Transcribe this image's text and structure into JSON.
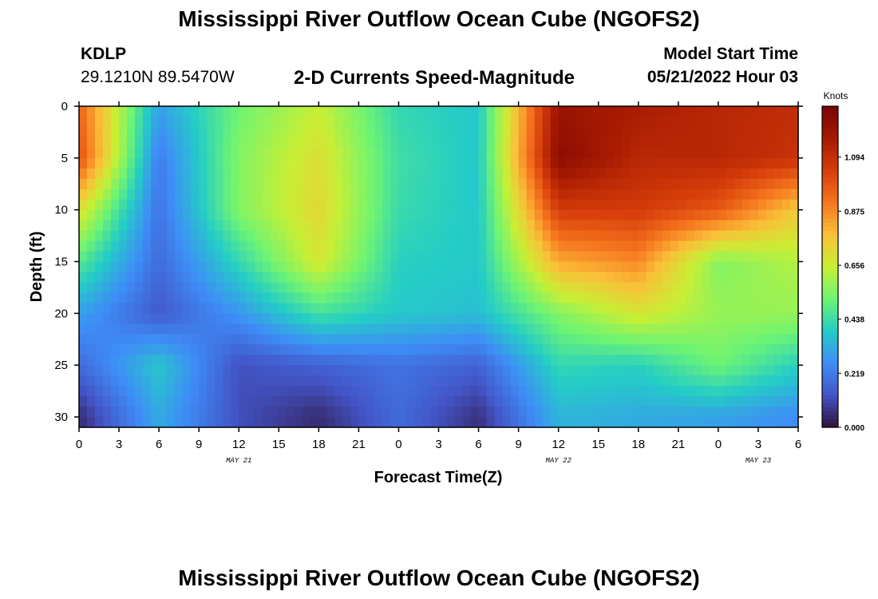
{
  "chart_data": {
    "type": "heatmap",
    "title": "Mississippi River Outflow Ocean Cube (NGOFS2)",
    "subtitle": "2-D Currents Speed-Magnitude",
    "station": {
      "id": "KDLP",
      "coords": "29.1210N  89.5470W"
    },
    "model_start": {
      "label": "Model Start Time",
      "value": "05/21/2022 Hour 03"
    },
    "xlabel": "Forecast Time(Z)",
    "ylabel": "Depth (ft)",
    "x_ticks": [
      "0",
      "3",
      "6",
      "9",
      "12",
      "15",
      "18",
      "21",
      "0",
      "3",
      "6",
      "9",
      "12",
      "15",
      "18",
      "21",
      "0",
      "3",
      "6"
    ],
    "x_range": [
      0,
      54
    ],
    "date_labels": [
      {
        "label": "MAY 21",
        "x_hour": 12
      },
      {
        "label": "MAY 22",
        "x_hour": 36
      },
      {
        "label": "MAY 23",
        "x_hour": 51
      }
    ],
    "y_ticks": [
      "0",
      "5",
      "10",
      "15",
      "20",
      "25",
      "30"
    ],
    "y_range": [
      0,
      31
    ],
    "y_inverted": true,
    "colorbar": {
      "unit": "Knots",
      "ticks": [
        "1.094",
        "0.875",
        "0.656",
        "0.438",
        "0.219",
        "0.000"
      ],
      "range": [
        0,
        1.3
      ]
    },
    "x_hours": [
      0,
      6,
      12,
      18,
      24,
      30,
      36,
      42,
      48,
      54
    ],
    "depths_ft": [
      0,
      5,
      10,
      15,
      20,
      25,
      30
    ],
    "speed_knots": [
      [
        0.95,
        0.3,
        0.52,
        0.65,
        0.42,
        0.38,
        1.2,
        1.16,
        1.12,
        1.1
      ],
      [
        1.0,
        0.22,
        0.55,
        0.7,
        0.44,
        0.38,
        1.25,
        1.12,
        1.12,
        1.08
      ],
      [
        0.7,
        0.2,
        0.55,
        0.72,
        0.43,
        0.38,
        1.05,
        1.05,
        0.98,
        0.75
      ],
      [
        0.48,
        0.18,
        0.42,
        0.68,
        0.4,
        0.38,
        0.82,
        0.88,
        0.55,
        0.62
      ],
      [
        0.3,
        0.14,
        0.28,
        0.45,
        0.38,
        0.36,
        0.55,
        0.68,
        0.58,
        0.58
      ],
      [
        0.18,
        0.38,
        0.12,
        0.16,
        0.2,
        0.16,
        0.42,
        0.4,
        0.52,
        0.4
      ],
      [
        0.05,
        0.32,
        0.12,
        0.05,
        0.18,
        0.06,
        0.34,
        0.32,
        0.3,
        0.26
      ]
    ]
  }
}
